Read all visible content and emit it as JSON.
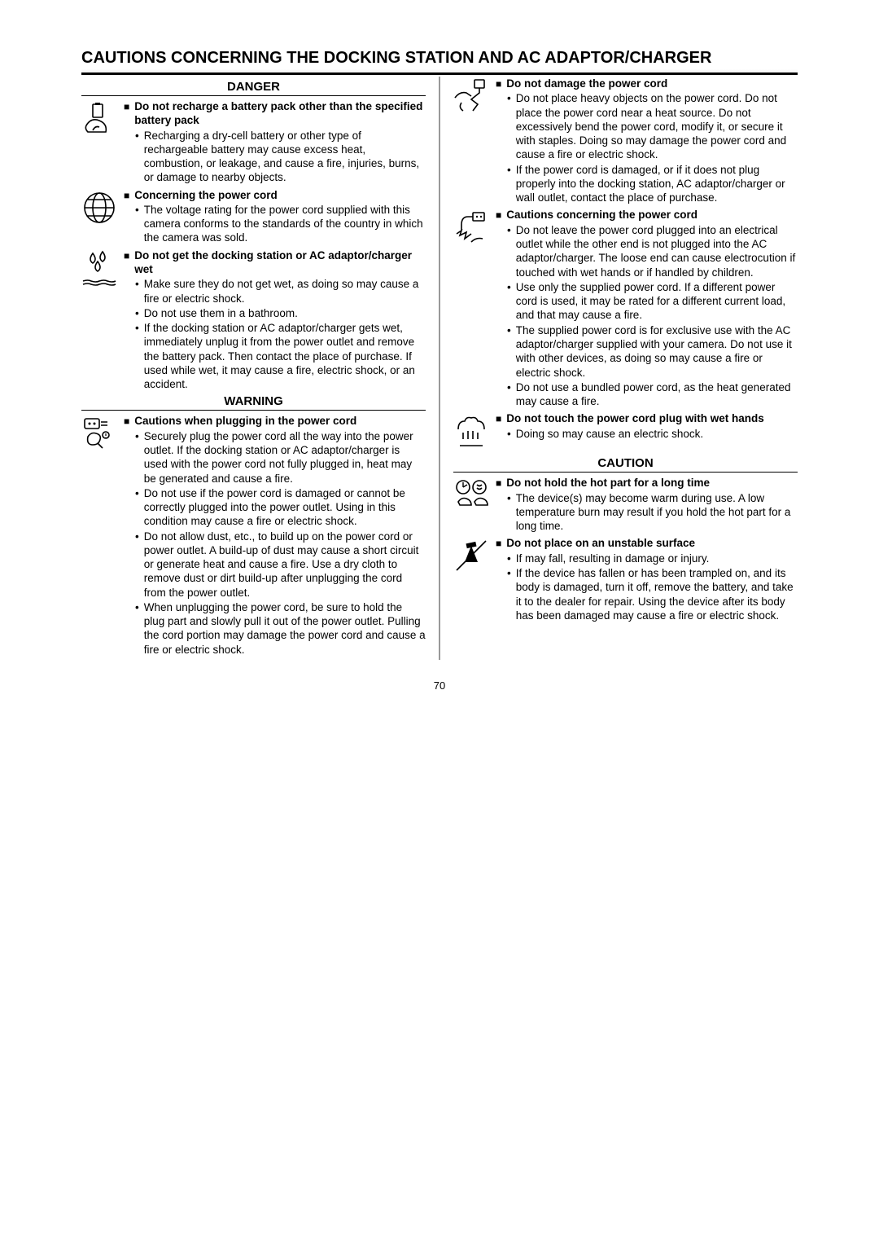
{
  "page_number": "70",
  "main_heading": "CAUTIONS CONCERNING THE DOCKING STATION AND AC ADAPTOR/CHARGER",
  "labels": {
    "danger": "DANGER",
    "warning": "WARNING",
    "caution": "CAUTION"
  },
  "left": [
    {
      "icon": "battery-fire",
      "title": "Do not recharge a battery pack other than the specified battery pack",
      "bullets": [
        "Recharging a dry-cell battery or other type of rechargeable battery may cause excess heat, combustion, or leakage, and cause a fire, injuries, burns, or damage to nearby objects."
      ]
    },
    {
      "icon": "globe",
      "title": "Concerning the power cord",
      "bullets": [
        "The voltage rating for the power cord supplied with this camera conforms to the standards of the country in which the camera was sold."
      ]
    },
    {
      "icon": "water-drops",
      "title": "Do not get the docking station or AC adaptor/charger wet",
      "bullets": [
        "Make sure they do not get wet, as doing so may cause a fire or electric shock.",
        "Do not use them in a bathroom.",
        "If the docking station or AC adaptor/charger gets wet, immediately unplug it from the power outlet and remove the battery pack. Then contact the place of purchase. If used while wet, it may cause a fire, electric shock, or an accident."
      ]
    }
  ],
  "left_after_warning": [
    {
      "icon": "plug-caution",
      "title": "Cautions when plugging in the power cord",
      "bullets": [
        "Securely plug the power cord all the way into the power outlet. If the docking station or AC adaptor/charger is used with the power cord not fully plugged in, heat may be generated and cause a fire.",
        "Do not use if the power cord is damaged or cannot be correctly plugged into the power outlet. Using in this condition may cause a fire or electric shock.",
        "Do not allow dust, etc., to build up on the power cord or power outlet. A build-up of dust may cause a short circuit or generate heat and cause a fire. Use a dry cloth to remove dust or dirt build-up after unplugging the cord from the power outlet.",
        "When unplugging the power cord, be sure to hold the plug part and slowly pull it out of the power outlet. Pulling the cord portion may damage the power cord and cause a fire or electric shock."
      ]
    }
  ],
  "right": [
    {
      "icon": "cord-damage",
      "title": "Do not damage the power cord",
      "bullets": [
        "Do not place heavy objects on the power cord. Do not place the power cord near a heat source. Do not excessively bend the power cord, modify it, or secure it with staples. Doing so may damage the power cord and cause a fire or electric shock.",
        "If the power cord is damaged, or if it does not plug properly into the docking station, AC adaptor/charger or wall outlet, contact the place of purchase."
      ]
    },
    {
      "icon": "cord-shock",
      "title": "Cautions concerning the power cord",
      "bullets": [
        "Do not leave the power cord plugged into an electrical outlet while the other end is not plugged into the AC adaptor/charger. The loose end can cause electrocution if touched with wet hands or if handled by children.",
        "Use only the supplied power cord. If a different power cord is used, it may be rated for a different current load, and that may cause a fire.",
        "The supplied power cord is for exclusive use with the AC adaptor/charger supplied with your camera. Do not use it with other devices, as doing so may cause a fire or electric shock.",
        "Do not use a bundled power cord, as the heat generated may cause a fire."
      ]
    },
    {
      "icon": "wet-hands",
      "title": "Do not touch the power cord plug with wet hands",
      "bullets": [
        "Doing so may cause an electric shock."
      ]
    }
  ],
  "right_after_caution": [
    {
      "icon": "hot-hands",
      "title": "Do not hold the hot part for a long time",
      "bullets": [
        "The device(s) may become warm during use. A low temperature burn may result if you hold the hot part for a long time."
      ]
    },
    {
      "icon": "unstable",
      "title": "Do not place on an unstable surface",
      "bullets": [
        "If may fall, resulting in damage or injury.",
        "If the device has fallen or has been trampled on, and its body is damaged, turn it off, remove the battery, and take it to the dealer for repair. Using the device after its body has been damaged may cause a fire or electric shock."
      ]
    }
  ]
}
